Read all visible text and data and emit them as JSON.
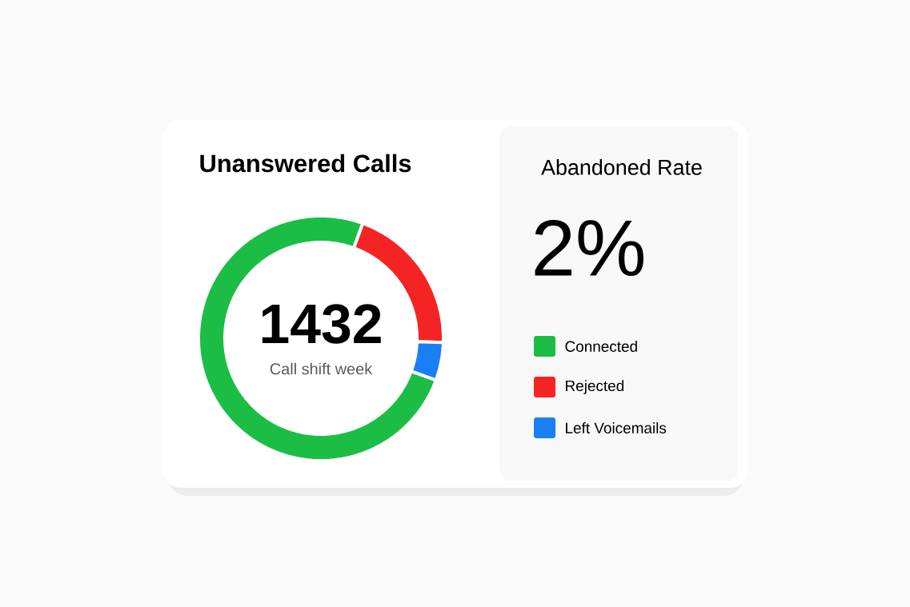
{
  "chart_data": [
    {
      "type": "donut",
      "title": "Unanswered Calls",
      "categories": [
        "Connected",
        "Rejected",
        "Left Voicemails"
      ],
      "values": [
        75,
        20,
        5
      ],
      "colors": [
        "#1cbd45",
        "#f52424",
        "#1a7ff5"
      ],
      "annotations": [
        "1432",
        "Call shift week"
      ],
      "legend": "right"
    },
    {
      "type": "other",
      "title": "Abandoned Rate",
      "annotations": [
        "2%"
      ]
    }
  ]
}
